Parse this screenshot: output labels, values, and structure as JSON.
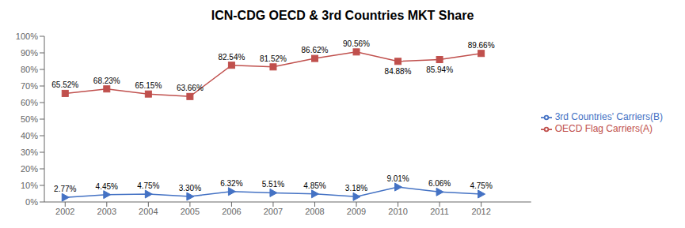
{
  "chart_data": {
    "type": "line",
    "title": "ICN-CDG OECD & 3rd Countries MKT Share",
    "x": [
      2002,
      2003,
      2004,
      2005,
      2006,
      2007,
      2008,
      2009,
      2010,
      2011,
      2012
    ],
    "series": [
      {
        "name": "3rd Countries' Carriers(B)",
        "color": "#4472C4",
        "marker": "triangle",
        "values": [
          2.77,
          4.45,
          4.75,
          3.3,
          6.32,
          5.51,
          4.85,
          3.18,
          9.01,
          6.06,
          4.75
        ],
        "value_labels": [
          "2.77%",
          "4.45%",
          "4.75%",
          "3.30%",
          "6.32%",
          "5.51%",
          "4.85%",
          "3.18%",
          "9.01%",
          "6.06%",
          "4.75%"
        ]
      },
      {
        "name": "OECD Flag Carriers(A)",
        "color": "#C0504D",
        "marker": "square",
        "values": [
          65.52,
          68.23,
          65.15,
          63.66,
          82.54,
          81.52,
          86.62,
          90.56,
          84.88,
          85.94,
          89.66
        ],
        "value_labels": [
          "65.52%",
          "68.23%",
          "65.15%",
          "63.66%",
          "82.54%",
          "81.52%",
          "86.62%",
          "90.56%",
          "84.88%",
          "85.94%",
          "89.66%"
        ]
      }
    ],
    "xlim": [
      2001.5,
      2013.2
    ],
    "xticks": [
      2002,
      2003,
      2004,
      2005,
      2006,
      2007,
      2008,
      2009,
      2010,
      2011,
      2012
    ],
    "ylim": [
      0,
      100
    ],
    "yticks": [
      {
        "value": 0,
        "label": "0%"
      },
      {
        "value": 10,
        "label": "10%"
      },
      {
        "value": 20,
        "label": "20%"
      },
      {
        "value": 30,
        "label": "30%"
      },
      {
        "value": 40,
        "label": "40%"
      },
      {
        "value": 50,
        "label": "50%"
      },
      {
        "value": 60,
        "label": "60%"
      },
      {
        "value": 70,
        "label": "70%"
      },
      {
        "value": 80,
        "label": "80%"
      },
      {
        "value": 90,
        "label": "90%"
      },
      {
        "value": 100,
        "label": "100%"
      }
    ],
    "grid": false,
    "legend": "right",
    "data_labels": true
  }
}
